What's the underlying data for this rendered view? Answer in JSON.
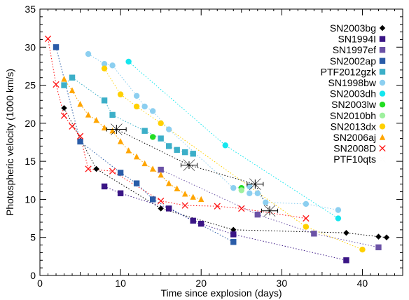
{
  "chart_data": {
    "type": "scatter",
    "xlabel": "Time since explosion (days)",
    "ylabel": "Photospheric velocity (1000 km/s)",
    "xlim": [
      0,
      45
    ],
    "ylim": [
      0,
      35
    ],
    "xticks": [
      0,
      10,
      20,
      30,
      40
    ],
    "yticks": [
      0,
      5,
      10,
      15,
      20,
      25,
      30,
      35
    ],
    "legend_position": "top-right",
    "series": [
      {
        "name": "SN2003bg",
        "marker": "diamond",
        "color": "#000000",
        "connect": true,
        "x": [
          3,
          7,
          15,
          24,
          38,
          42,
          43
        ],
        "y": [
          22,
          14,
          8.8,
          6,
          5.6,
          5.1,
          5
        ]
      },
      {
        "name": "SN1994I",
        "marker": "square",
        "color": "#3a1585",
        "connect": true,
        "x": [
          8,
          10,
          16,
          19,
          20,
          24,
          38
        ],
        "y": [
          11.7,
          10.8,
          8.8,
          7.2,
          6.8,
          5.4,
          2
        ]
      },
      {
        "name": "SN1997ef",
        "marker": "square",
        "color": "#6b52a6",
        "connect": true,
        "x": [
          15,
          27,
          34,
          42
        ],
        "y": [
          13.9,
          8,
          5.5,
          3.7
        ]
      },
      {
        "name": "SN2002ap",
        "marker": "square",
        "color": "#2a5ca8",
        "connect": true,
        "x": [
          2,
          5,
          10,
          12,
          14,
          24
        ],
        "y": [
          30,
          17.6,
          13.5,
          12.1,
          10,
          4.4
        ]
      },
      {
        "name": "PTF2012gzk",
        "marker": "square",
        "color": "#3cafc8",
        "connect": true,
        "x": [
          3,
          4,
          8,
          9,
          13,
          15,
          16,
          17,
          18,
          19
        ],
        "y": [
          25,
          26,
          23,
          21.1,
          19,
          18,
          17,
          16.5,
          16.2,
          16
        ]
      },
      {
        "name": "SN1998bw",
        "marker": "circle",
        "color": "#8ccff0",
        "connect": true,
        "x": [
          6,
          8,
          9,
          12,
          13,
          14,
          16,
          24,
          26,
          26,
          27,
          28,
          33,
          37
        ],
        "y": [
          29.1,
          27.8,
          27.6,
          23.6,
          22.2,
          21.6,
          19.2,
          11.5,
          11.7,
          10.8,
          10.8,
          9.6,
          9.4,
          8.6
        ]
      },
      {
        "name": "SN2003dh",
        "marker": "circle",
        "color": "#14e6ee",
        "connect": true,
        "x": [
          11,
          23,
          37
        ],
        "y": [
          28.1,
          17.1,
          7.5
        ]
      },
      {
        "name": "SN2003lw",
        "marker": "circle",
        "color": "#22dd22",
        "connect": false,
        "x": [
          14,
          25
        ],
        "y": [
          18.2,
          11.5
        ]
      },
      {
        "name": "SN2010bh",
        "marker": "circle",
        "color": "#9ef09e",
        "connect": false,
        "x": [
          25
        ],
        "y": [
          11.2
        ]
      },
      {
        "name": "SN2013dx",
        "marker": "circle",
        "color": "#ffd000",
        "connect": true,
        "x": [
          8,
          10,
          12,
          15,
          33,
          40
        ],
        "y": [
          27.2,
          23.8,
          22.2,
          20,
          6.4,
          3.4
        ]
      },
      {
        "name": "SN2006aj",
        "marker": "triangle",
        "color": "#ffa500",
        "connect": true,
        "x": [
          3,
          4,
          5,
          6,
          7,
          8,
          9,
          10,
          11,
          12,
          13,
          14,
          15,
          16,
          17,
          18,
          19,
          20
        ],
        "y": [
          25.8,
          24.3,
          22.5,
          21.1,
          20.4,
          19.4,
          19,
          17.6,
          16.4,
          15.6,
          14.7,
          14,
          13.2,
          12.1,
          11.4,
          10.7,
          10.3,
          10
        ]
      },
      {
        "name": "SN2008D",
        "marker": "x",
        "color": "#ff1010",
        "connect": true,
        "x": [
          1,
          2,
          3,
          4,
          5,
          6,
          9,
          15,
          18,
          22,
          25,
          33
        ],
        "y": [
          31.1,
          25.1,
          21,
          19.6,
          18.3,
          14,
          13.7,
          9.8,
          9.2,
          9.1,
          8.8,
          7.5
        ]
      },
      {
        "name": "PTF10qts",
        "marker": "bowtie",
        "color": "#000000",
        "connect": true,
        "x": [
          9.5,
          18.5,
          26.7,
          28.5
        ],
        "y": [
          19.2,
          14.5,
          12,
          8.5
        ],
        "xerr": [
          1.2,
          1.0,
          1.0,
          1.0
        ],
        "yerr": [
          0.6,
          0.5,
          0.6,
          0.6
        ]
      }
    ]
  }
}
